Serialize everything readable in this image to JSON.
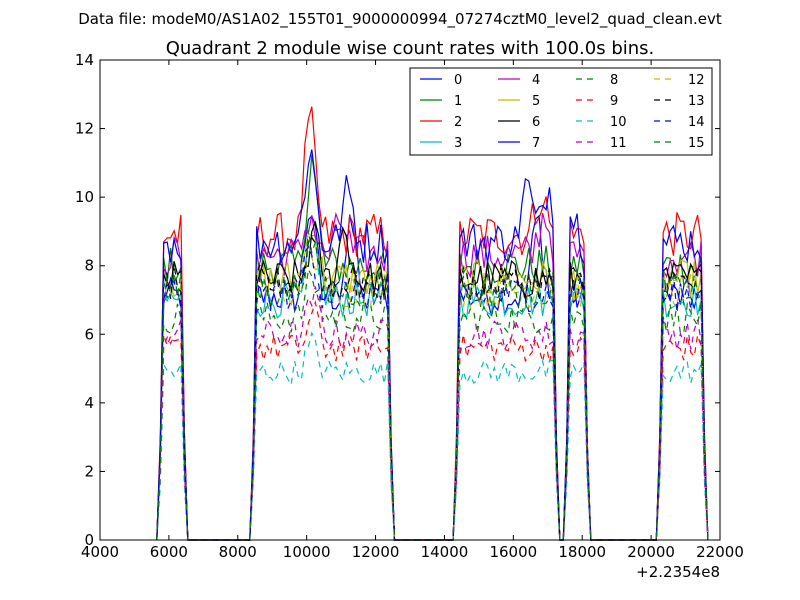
{
  "suptitle": "Data file: modeM0/AS1A02_155T01_9000000994_07274cztM0_level2_quad_clean.evt",
  "chart_data": {
    "type": "line",
    "title": "Quadrant 2 module wise count rates with 100.0s bins.",
    "xlabel": "",
    "ylabel": "",
    "x_offset_label": "+2.2354e8",
    "xlim": [
      4000,
      22000
    ],
    "ylim": [
      0,
      14
    ],
    "xticks": [
      4000,
      6000,
      8000,
      10000,
      12000,
      14000,
      16000,
      18000,
      20000,
      22000
    ],
    "yticks": [
      0,
      2,
      4,
      6,
      8,
      10,
      12,
      14
    ],
    "grid": false,
    "legend": {
      "position": "top-right",
      "columns": 4
    },
    "series": [
      {
        "name": "0",
        "color": "#0000ff",
        "dash": "solid",
        "level": 7.1,
        "peaks": [
          [
            10100,
            10.0
          ],
          [
            11300,
            9.3
          ],
          [
            16700,
            9.6
          ]
        ]
      },
      {
        "name": "1",
        "color": "#008000",
        "dash": "solid",
        "level": 8.0,
        "peaks": [
          [
            10150,
            11.2
          ]
        ]
      },
      {
        "name": "2",
        "color": "#ff0000",
        "dash": "solid",
        "level": 8.9,
        "peaks": [
          [
            10100,
            12.5
          ],
          [
            16800,
            10.2
          ]
        ]
      },
      {
        "name": "3",
        "color": "#00bfbf",
        "dash": "solid",
        "level": 7.0,
        "peaks": [
          [
            10200,
            9.0
          ]
        ]
      },
      {
        "name": "4",
        "color": "#bf00bf",
        "dash": "solid",
        "level": 8.3,
        "peaks": [
          [
            10100,
            9.6
          ],
          [
            11000,
            9.4
          ],
          [
            16900,
            9.6
          ]
        ]
      },
      {
        "name": "5",
        "color": "#bfbf00",
        "dash": "solid",
        "level": 7.6,
        "peaks": [
          [
            10150,
            9.4
          ]
        ]
      },
      {
        "name": "6",
        "color": "#000000",
        "dash": "solid",
        "level": 7.6,
        "peaks": [
          [
            10200,
            9.0
          ],
          [
            11100,
            9.2
          ]
        ]
      },
      {
        "name": "7",
        "color": "#0000ff",
        "dash": "solid",
        "level": 8.7,
        "peaks": [
          [
            10100,
            11.7
          ],
          [
            11200,
            10.3
          ],
          [
            16400,
            10.5
          ],
          [
            17000,
            10.5
          ],
          [
            17700,
            9.6
          ]
        ]
      },
      {
        "name": "8",
        "color": "#008000",
        "dash": "dashed",
        "level": 6.5,
        "peaks": [
          [
            10150,
            7.8
          ]
        ]
      },
      {
        "name": "9",
        "color": "#ff0000",
        "dash": "dashed",
        "level": 5.6,
        "peaks": [
          [
            10200,
            6.7
          ]
        ]
      },
      {
        "name": "10",
        "color": "#00bfbf",
        "dash": "dashed",
        "level": 4.9,
        "peaks": [
          [
            10150,
            5.8
          ]
        ]
      },
      {
        "name": "11",
        "color": "#bf00bf",
        "dash": "dashed",
        "level": 6.0,
        "peaks": [
          [
            10200,
            7.2
          ]
        ]
      },
      {
        "name": "12",
        "color": "#bfbf00",
        "dash": "dashed",
        "level": 7.3,
        "peaks": [
          [
            10150,
            8.6
          ]
        ]
      },
      {
        "name": "13",
        "color": "#000000",
        "dash": "dashed",
        "level": 7.5,
        "peaks": [
          [
            10150,
            9.0
          ]
        ]
      },
      {
        "name": "14",
        "color": "#0000ff",
        "dash": "dashed",
        "level": 7.2,
        "peaks": [
          [
            10100,
            8.8
          ]
        ]
      },
      {
        "name": "15",
        "color": "#008000",
        "dash": "dashed",
        "level": 7.3,
        "peaks": [
          [
            10100,
            8.8
          ]
        ]
      }
    ],
    "on_segments": [
      [
        5700,
        6500
      ],
      [
        8400,
        12500
      ],
      [
        14300,
        17300
      ],
      [
        17500,
        18200
      ],
      [
        20200,
        21600
      ]
    ]
  }
}
